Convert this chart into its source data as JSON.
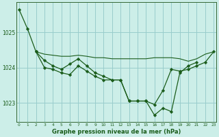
{
  "title": "Graphe pression niveau de la mer (hPa)",
  "bg_color": "#cceee8",
  "grid_color": "#99cccc",
  "line_color": "#1a5c1a",
  "xlim_min": -0.3,
  "xlim_max": 23.3,
  "ylim_min": 1022.45,
  "ylim_max": 1025.85,
  "yticks": [
    1023,
    1024,
    1025
  ],
  "xtick_labels": [
    "0",
    "1",
    "2",
    "3",
    "4",
    "5",
    "6",
    "7",
    "8",
    "9",
    "10",
    "11",
    "12",
    "13",
    "14",
    "15",
    "16",
    "17",
    "18",
    "19",
    "20",
    "21",
    "22",
    "23"
  ],
  "series_steep_x": [
    0,
    1,
    2,
    3,
    4,
    5,
    6,
    7,
    8,
    9,
    10,
    11,
    12,
    13,
    14,
    15,
    16,
    17,
    18,
    19,
    20,
    21
  ],
  "series_steep_y": [
    1025.65,
    1025.1,
    1024.45,
    1024.0,
    1023.95,
    1023.85,
    1023.8,
    1024.05,
    1023.9,
    1023.75,
    1023.65,
    1023.65,
    1023.65,
    1023.05,
    1023.05,
    1023.05,
    1022.65,
    1022.85,
    1022.75,
    1023.85,
    1024.05,
    1024.15
  ],
  "series_mid_x": [
    2,
    3,
    4,
    5,
    6,
    7,
    8,
    9,
    10,
    11,
    12,
    13,
    14,
    15,
    16,
    17,
    18,
    19,
    20,
    21,
    22,
    23
  ],
  "series_mid_y": [
    1024.45,
    1024.2,
    1024.05,
    1023.95,
    1024.1,
    1024.25,
    1024.05,
    1023.85,
    1023.75,
    1023.65,
    1023.65,
    1023.05,
    1023.05,
    1023.05,
    1022.95,
    1023.35,
    1023.95,
    1023.9,
    1023.95,
    1024.05,
    1024.15,
    1024.45
  ],
  "series_flat_x": [
    2,
    3,
    4,
    5,
    6,
    7,
    8,
    9,
    10,
    11,
    12,
    13,
    14,
    15,
    16,
    17,
    18,
    19,
    20,
    21,
    22,
    23
  ],
  "series_flat_y": [
    1024.45,
    1024.38,
    1024.35,
    1024.32,
    1024.32,
    1024.35,
    1024.32,
    1024.28,
    1024.28,
    1024.25,
    1024.25,
    1024.25,
    1024.25,
    1024.25,
    1024.28,
    1024.28,
    1024.28,
    1024.25,
    1024.18,
    1024.25,
    1024.38,
    1024.45
  ]
}
